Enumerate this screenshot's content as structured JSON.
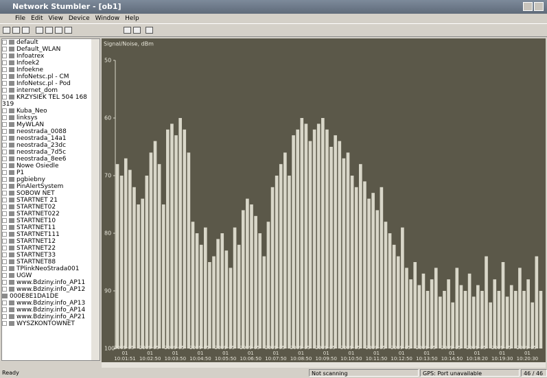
{
  "window": {
    "title": "Network Stumbler - [ob1]"
  },
  "menu": [
    "File",
    "Edit",
    "View",
    "Device",
    "Window",
    "Help"
  ],
  "tree": {
    "items": [
      {
        "label": "default"
      },
      {
        "label": "Default_WLAN"
      },
      {
        "label": "Infoatrex"
      },
      {
        "label": "Infoek2"
      },
      {
        "label": "Infoekne"
      },
      {
        "label": "InfoNetsc.pl - CM"
      },
      {
        "label": "InfoNetsc.pl - Pod"
      },
      {
        "label": "internet_dom"
      },
      {
        "label": "KRZYSIEK TEL 504 168 319"
      },
      {
        "label": "Kuba_Neo"
      },
      {
        "label": "linksys"
      },
      {
        "label": "MyWLAN"
      },
      {
        "label": "neostrada_0088"
      },
      {
        "label": "neostrada_14a1"
      },
      {
        "label": "neostrada_23dc"
      },
      {
        "label": "neostrada_7d5c"
      },
      {
        "label": "neostrada_8ee6"
      },
      {
        "label": "Nowe Osiedle"
      },
      {
        "label": "P1"
      },
      {
        "label": "pgbiebny"
      },
      {
        "label": "PinAlertSystem"
      },
      {
        "label": "SOBOW NET"
      },
      {
        "label": "STARTNET 21"
      },
      {
        "label": "STARTNET02"
      },
      {
        "label": "STARTNET022"
      },
      {
        "label": "STARTNET10"
      },
      {
        "label": "STARTNET11"
      },
      {
        "label": "STARTNET111"
      },
      {
        "label": "STARTNET12"
      },
      {
        "label": "STARTNET22"
      },
      {
        "label": "STARTNET33"
      },
      {
        "label": "STARTNET88"
      },
      {
        "label": "TPlinkNeoStrada001"
      },
      {
        "label": "UGW"
      },
      {
        "label": "www.Bdziny.info_AP11"
      },
      {
        "label": "www.Bdziny.info_AP12",
        "children": [
          "000E8E1DA1DE"
        ]
      },
      {
        "label": "www.Bdziny.info_AP13"
      },
      {
        "label": "www.Bdziny.info_AP14"
      },
      {
        "label": "www.Bdziny.info_AP21"
      },
      {
        "label": "WYSZKONTOWNET"
      }
    ]
  },
  "chart_data": {
    "type": "bar",
    "y_label": "Signal/Noise, dBm",
    "color": "#d9d7c9",
    "ylim": [
      100,
      50
    ],
    "yticks": [
      50,
      60,
      70,
      80,
      90,
      100
    ],
    "categories": [
      "2009-05-01 10:01:51",
      null,
      null,
      null,
      null,
      null,
      "2009-05-01 10:02:50",
      null,
      null,
      null,
      null,
      null,
      "2009-05-01 10:03:50",
      null,
      null,
      null,
      null,
      null,
      "2009-05-01 10:04:50",
      null,
      null,
      null,
      null,
      null,
      "2009-05-01 10:05:50",
      null,
      null,
      null,
      null,
      null,
      "2009-05-01 10:06:50",
      null,
      null,
      null,
      null,
      null,
      "2009-05-01 10:07:50",
      null,
      null,
      null,
      null,
      null,
      "2009-05-01 10:08:50",
      null,
      null,
      null,
      null,
      null,
      "2009-05-01 10:09:50",
      null,
      null,
      null,
      null,
      null,
      "2009-05-01 10:10:50",
      null,
      null,
      null,
      null,
      null,
      "2009-05-01 10:11:50",
      null,
      null,
      null,
      null,
      null,
      "2009-05-01 10:12:50",
      null,
      null,
      null,
      null,
      null,
      "2009-05-01 10:13:50",
      null,
      null,
      null,
      null,
      null,
      "2009-05-01 10:14:50",
      null,
      null,
      null,
      null,
      null,
      "2009-05-01 10:18:20",
      null,
      null,
      null,
      null,
      null,
      "2009-05-01 10:19:30",
      null,
      null,
      null,
      null,
      null,
      "2009-05-01 10:20:30",
      null,
      null,
      null,
      null,
      null
    ],
    "values": [
      68,
      70,
      67,
      69,
      72,
      75,
      74,
      70,
      66,
      64,
      68,
      75,
      62,
      61,
      63,
      60,
      62,
      66,
      78,
      80,
      82,
      79,
      85,
      84,
      81,
      80,
      83,
      86,
      79,
      82,
      76,
      74,
      75,
      77,
      80,
      84,
      78,
      72,
      70,
      68,
      66,
      70,
      63,
      62,
      60,
      61,
      64,
      62,
      61,
      60,
      62,
      65,
      63,
      64,
      67,
      66,
      70,
      72,
      68,
      71,
      74,
      73,
      76,
      72,
      78,
      80,
      82,
      84,
      79,
      86,
      88,
      85,
      89,
      87,
      90,
      88,
      86,
      91,
      90,
      88,
      92,
      86,
      89,
      90,
      87,
      91,
      89,
      90,
      84,
      92,
      88,
      90,
      85,
      91,
      89,
      90,
      86,
      90,
      88,
      92,
      84,
      90
    ]
  },
  "status": {
    "left": "Ready",
    "scan": "Not scanning",
    "gps": "GPS: Port unavailable",
    "count": "46 / 46"
  }
}
